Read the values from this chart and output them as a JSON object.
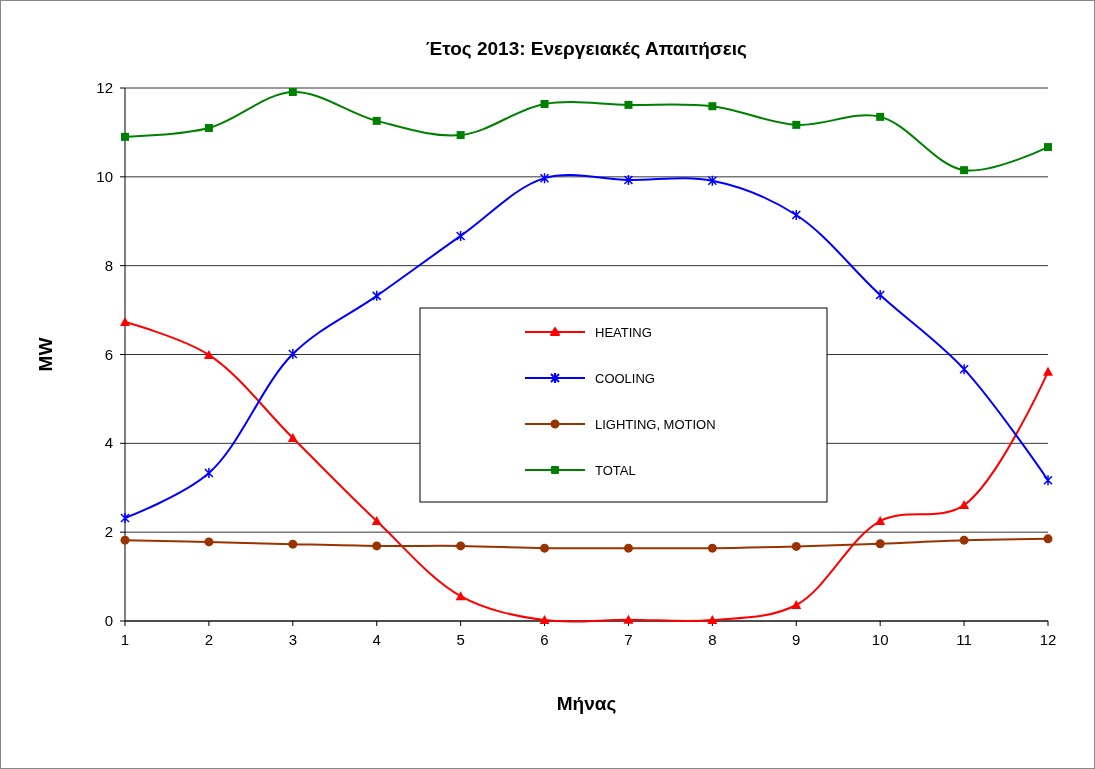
{
  "chart_data": {
    "type": "line",
    "title": "Έτος 2013: Ενεργειακές Απαιτήσεις",
    "xlabel": "Μήνας",
    "ylabel": "MW",
    "x": [
      1,
      2,
      3,
      4,
      5,
      6,
      7,
      8,
      9,
      10,
      11,
      12
    ],
    "xlim": [
      1,
      12
    ],
    "xticks": [
      1,
      2,
      3,
      4,
      5,
      6,
      7,
      8,
      9,
      10,
      11,
      12
    ],
    "ylim": [
      0,
      12
    ],
    "yticks": [
      0,
      2,
      4,
      6,
      8,
      10,
      12
    ],
    "grid": "y",
    "legend": "center",
    "series": [
      {
        "name": "HEATING",
        "color": "#ff0000",
        "marker": "triangle",
        "values": [
          6.73,
          5.99,
          4.12,
          2.25,
          0.56,
          0.02,
          0.03,
          0.02,
          0.36,
          2.25,
          2.61,
          5.61
        ]
      },
      {
        "name": "COOLING",
        "color": "#0000ff",
        "marker": "cross",
        "values": [
          2.32,
          3.33,
          6.01,
          7.32,
          8.67,
          9.97,
          9.93,
          9.91,
          9.14,
          7.34,
          5.67,
          3.17
        ]
      },
      {
        "name": "LIGHTING, MOTION",
        "color": "#993300",
        "marker": "circle",
        "values": [
          1.82,
          1.78,
          1.73,
          1.69,
          1.69,
          1.64,
          1.64,
          1.64,
          1.68,
          1.74,
          1.82,
          1.85
        ]
      },
      {
        "name": "TOTAL",
        "color": "#008000",
        "marker": "square",
        "values": [
          10.9,
          11.1,
          11.91,
          11.26,
          10.94,
          11.64,
          11.62,
          11.59,
          11.17,
          11.35,
          10.15,
          10.67
        ]
      }
    ]
  }
}
